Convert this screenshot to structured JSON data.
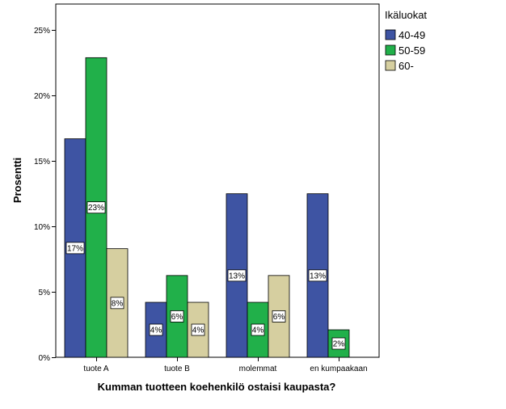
{
  "chart_data": {
    "type": "bar",
    "xlabel": "Kumman tuotteen koehenkilö ostaisi kaupasta?",
    "ylabel": "Prosentti",
    "categories": [
      "tuote A",
      "tuote B",
      "molemmat",
      "en kumpaakaan"
    ],
    "ylim": [
      0,
      27
    ],
    "yticks": [
      0,
      5,
      10,
      15,
      20,
      25
    ],
    "ytick_labels": [
      "0%",
      "5%",
      "10%",
      "15%",
      "20%",
      "25%"
    ],
    "grid": false,
    "legend_title": "Ikäluokat",
    "legend_position": "right",
    "series": [
      {
        "name": "40-49",
        "color": "#3e54a3",
        "values": [
          16.7,
          4.2,
          12.5,
          12.5
        ],
        "labels": [
          "17%",
          "4%",
          "13%",
          "13%"
        ]
      },
      {
        "name": "50-59",
        "color": "#21b04a",
        "values": [
          22.9,
          6.25,
          4.2,
          2.1
        ],
        "labels": [
          "23%",
          "6%",
          "4%",
          "2%"
        ]
      },
      {
        "name": "60-",
        "color": "#d6cfa0",
        "values": [
          8.3,
          4.2,
          6.25,
          0
        ],
        "labels": [
          "8%",
          "4%",
          "6%",
          ""
        ]
      }
    ]
  }
}
